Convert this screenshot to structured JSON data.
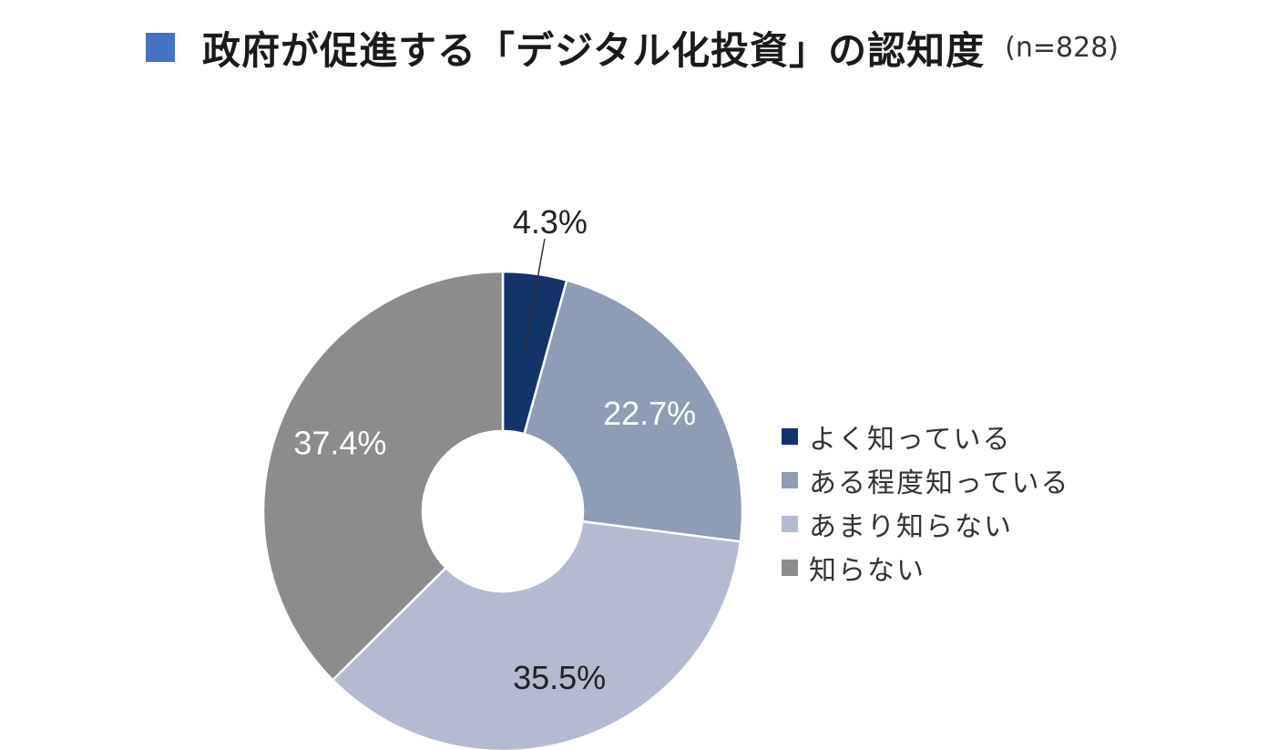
{
  "title": {
    "text": "政府が促進する「デジタル化投資」の認知度",
    "n_label": "(n=828)",
    "marker_color": "#4472c4"
  },
  "chart_data": {
    "type": "pie",
    "variant": "donut",
    "title": "政府が促進する「デジタル化投資」の認知度",
    "subtitle": "(n=828)",
    "categories": [
      "よく知っている",
      "ある程度知っている",
      "あまり知らない",
      "知らない"
    ],
    "values": [
      4.3,
      22.7,
      35.5,
      37.4
    ],
    "value_labels": [
      "4.3%",
      "22.7%",
      "35.5%",
      "37.4%"
    ],
    "colors": [
      "#13336b",
      "#8e9cb5",
      "#b4bacf",
      "#8c8b8d"
    ],
    "label_colors": [
      "#222222",
      "#ffffff",
      "#222222",
      "#ffffff"
    ],
    "start_angle_deg": 0,
    "direction": "clockwise",
    "legend_position": "right"
  }
}
